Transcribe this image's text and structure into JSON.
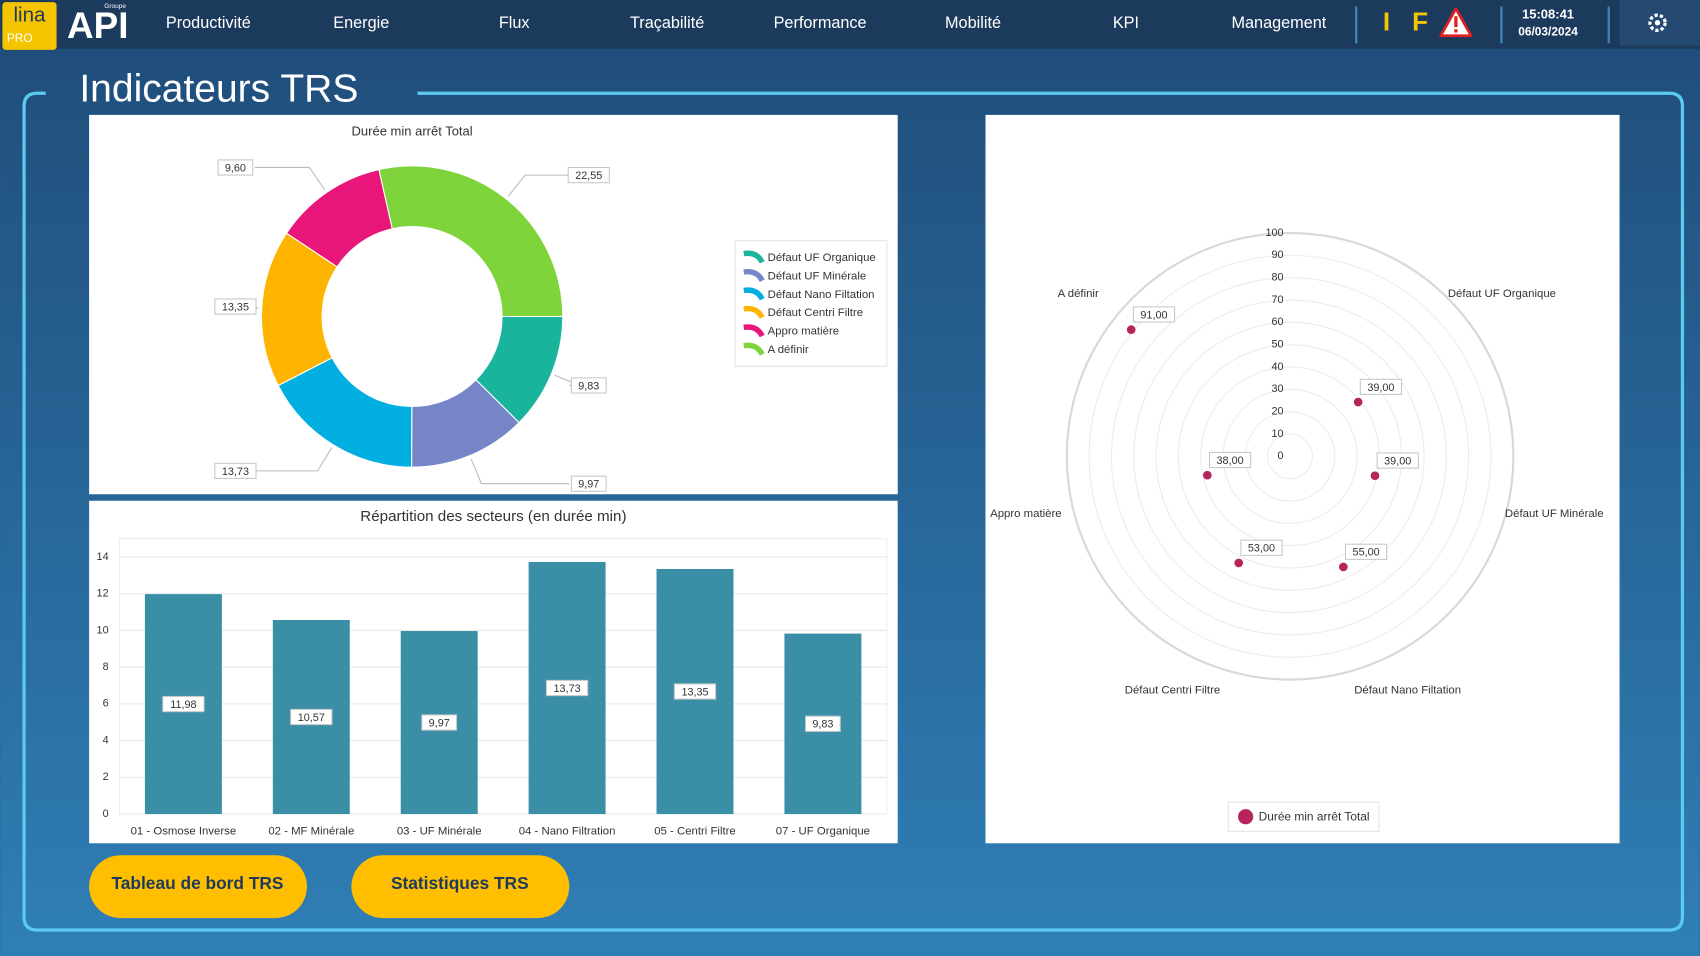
{
  "header": {
    "logo": {
      "brand": "lina",
      "edition": "PRO",
      "group": "Groupe",
      "name": "API"
    },
    "nav": [
      "Productivité",
      "Energie",
      "Flux",
      "Traçabilité",
      "Performance",
      "Mobilité",
      "KPI",
      "Management"
    ],
    "status": [
      "I",
      "F"
    ],
    "time": "15:08:41",
    "date": "06/03/2024"
  },
  "page_title": "Indicateurs TRS",
  "buttons": [
    "Tableau de bord TRS",
    "Statistiques TRS"
  ],
  "chart_data": [
    {
      "type": "donut",
      "title": "Durée min arrêt Total",
      "categories": [
        "Défaut UF Organique",
        "Défaut UF Minérale",
        "Défaut Nano Filtation",
        "Défaut Centri Filtre",
        "Appro matière",
        "A définir"
      ],
      "values": [
        9.83,
        9.97,
        13.73,
        13.35,
        9.6,
        22.55
      ],
      "value_labels": [
        "9,83",
        "9,97",
        "13,73",
        "13,35",
        "9,60",
        "22,55"
      ],
      "colors": [
        "#1ab39c",
        "#7585c8",
        "#00aee0",
        "#ffb400",
        "#e8157a",
        "#7ed43a"
      ],
      "legend": "right"
    },
    {
      "type": "bar",
      "title": "Répartition des secteurs (en durée min)",
      "categories": [
        "01 - Osmose Inverse",
        "02 - MF Minérale",
        "03 - UF Minérale",
        "04 - Nano Filtration",
        "05 - Centri Filtre",
        "07 - UF Organique"
      ],
      "values": [
        11.98,
        10.57,
        9.97,
        13.73,
        13.35,
        9.83
      ],
      "value_labels": [
        "11,98",
        "10,57",
        "9,97",
        "13,73",
        "13,35",
        "9,83"
      ],
      "color": "#3a8fa6",
      "ylim": [
        0,
        15
      ],
      "yticks": [
        0,
        2,
        4,
        6,
        8,
        10,
        12,
        14
      ],
      "grid": true
    },
    {
      "type": "radar",
      "categories": [
        null,
        "Défaut UF Organique",
        "Défaut UF Minérale",
        "Défaut Nano Filtation",
        "Défaut Centri Filtre",
        "Appro matière",
        "A définir"
      ],
      "series": [
        {
          "name": "Durée min arrêt Total",
          "color": "#b5245a",
          "values": [
            null,
            39,
            39,
            55,
            53,
            38,
            91
          ],
          "value_labels": [
            null,
            "39,00",
            "39,00",
            "55,00",
            "53,00",
            "38,00",
            "91,00"
          ]
        }
      ],
      "ylim": [
        0,
        100
      ],
      "yticks": [
        0,
        10,
        20,
        30,
        40,
        50,
        60,
        70,
        80,
        90,
        100
      ],
      "grid": true,
      "legend": "bottom"
    }
  ]
}
